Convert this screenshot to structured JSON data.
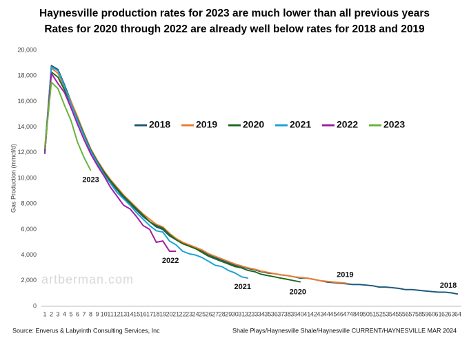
{
  "chart_data": {
    "type": "line",
    "title": "Haynesville production rates for 2023 are much lower than all previous years",
    "subtitle": "Rates for 2020 through 2022 are already well below rates for 2018 and 2019",
    "y_label": "Gas Production (mmcf/d)",
    "watermark": "artberman.com",
    "source": "Source:  Enverus & Labyrinth Consulting Services, Inc",
    "footer_right": "Shale Plays/Haynesville Shale/Haynesville  CURRENT/HAYNESVILLE MAR 2024",
    "legend": "center",
    "grid": false,
    "x": [
      1,
      2,
      3,
      4,
      5,
      6,
      7,
      8,
      9,
      10,
      11,
      12,
      13,
      14,
      15,
      16,
      17,
      18,
      19,
      20,
      21,
      22,
      23,
      24,
      25,
      26,
      27,
      28,
      29,
      30,
      31,
      32,
      33,
      34,
      35,
      36,
      37,
      38,
      39,
      40,
      41,
      42,
      43,
      44,
      45,
      46,
      47,
      48,
      49,
      50,
      51,
      52,
      53,
      54,
      55,
      56,
      57,
      58,
      59,
      60,
      61,
      62,
      63,
      64
    ],
    "xlim": [
      1,
      64
    ],
    "ylim": [
      0,
      20000
    ],
    "yticks": [
      0,
      {
        "value": 2000,
        "label": "2,000"
      },
      {
        "value": 4000,
        "label": "4,000"
      },
      {
        "value": 6000,
        "label": "6,000"
      },
      {
        "value": 8000,
        "label": "8,000"
      },
      {
        "value": 10000,
        "label": "10,000"
      },
      {
        "value": 12000,
        "label": "12,000"
      },
      {
        "value": 14000,
        "label": "14,000"
      },
      {
        "value": 16000,
        "label": "16,000"
      },
      {
        "value": 18000,
        "label": "18,000"
      },
      {
        "value": 20000,
        "label": "20,000"
      }
    ],
    "series": [
      {
        "name": "2018",
        "color": "#1f5a7a",
        "end_label": "2018",
        "values": [
          11900,
          18800,
          18500,
          17300,
          16000,
          14700,
          13400,
          12200,
          11200,
          10400,
          9700,
          9100,
          8500,
          8000,
          7500,
          7000,
          6600,
          6200,
          6000,
          5500,
          5200,
          4900,
          4700,
          4500,
          4300,
          4000,
          3800,
          3600,
          3400,
          3200,
          3100,
          2950,
          2850,
          2700,
          2600,
          2550,
          2450,
          2400,
          2300,
          2200,
          2200,
          2100,
          2000,
          1900,
          1850,
          1800,
          1750,
          1700,
          1700,
          1650,
          1600,
          1500,
          1500,
          1450,
          1400,
          1300,
          1300,
          1250,
          1200,
          1150,
          1100,
          1100,
          1050,
          950
        ]
      },
      {
        "name": "2019",
        "color": "#ed7d31",
        "end_label": "2019",
        "values": [
          12400,
          18600,
          18200,
          17100,
          16000,
          14800,
          13500,
          12300,
          11400,
          10600,
          9900,
          9300,
          8700,
          8200,
          7700,
          7200,
          6800,
          6400,
          6200,
          5700,
          5300,
          5000,
          4800,
          4600,
          4400,
          4100,
          3900,
          3700,
          3500,
          3300,
          3150,
          3000,
          2900,
          2750,
          2650,
          2550,
          2450,
          2400,
          2300,
          2250,
          2200,
          2100,
          2000,
          1950,
          1900,
          1850,
          1800,
          null,
          null,
          null,
          null,
          null,
          null,
          null,
          null,
          null,
          null,
          null,
          null,
          null,
          null,
          null,
          null,
          null
        ]
      },
      {
        "name": "2020",
        "color": "#1e6b1e",
        "end_label": "2020",
        "values": [
          12200,
          18300,
          17900,
          16900,
          15800,
          14600,
          13400,
          12200,
          11300,
          10500,
          9800,
          9200,
          8600,
          8100,
          7600,
          7100,
          6600,
          6300,
          6100,
          5600,
          5200,
          4900,
          4700,
          4500,
          4200,
          3900,
          3700,
          3500,
          3300,
          3100,
          3000,
          2800,
          2700,
          2500,
          2400,
          2300,
          2200,
          2100,
          2000,
          1900,
          null,
          null,
          null,
          null,
          null,
          null,
          null,
          null,
          null,
          null,
          null,
          null,
          null,
          null,
          null,
          null,
          null,
          null,
          null,
          null,
          null,
          null,
          null,
          null
        ]
      },
      {
        "name": "2021",
        "color": "#1fa2d6",
        "end_label": "2021",
        "values": [
          12100,
          18700,
          18400,
          17200,
          15800,
          14500,
          13300,
          12100,
          11200,
          10300,
          9600,
          8900,
          8400,
          7900,
          7300,
          6800,
          6300,
          5900,
          5800,
          5100,
          4800,
          4300,
          4100,
          4000,
          3800,
          3500,
          3200,
          3100,
          2800,
          2600,
          2300,
          2200,
          null,
          null,
          null,
          null,
          null,
          null,
          null,
          null,
          null,
          null,
          null,
          null,
          null,
          null,
          null,
          null,
          null,
          null,
          null,
          null,
          null,
          null,
          null,
          null,
          null,
          null,
          null,
          null,
          null,
          null,
          null,
          null
        ]
      },
      {
        "name": "2022",
        "color": "#a0209f",
        "end_label": "2022",
        "values": [
          12000,
          18200,
          17400,
          16700,
          15500,
          14200,
          13000,
          11900,
          11000,
          10200,
          9300,
          8600,
          7900,
          7600,
          7000,
          6300,
          6000,
          5000,
          5100,
          4300,
          4300,
          null,
          null,
          null,
          null,
          null,
          null,
          null,
          null,
          null,
          null,
          null,
          null,
          null,
          null,
          null,
          null,
          null,
          null,
          null,
          null,
          null,
          null,
          null,
          null,
          null,
          null,
          null,
          null,
          null,
          null,
          null,
          null,
          null,
          null,
          null,
          null,
          null,
          null,
          null,
          null,
          null,
          null,
          null
        ]
      },
      {
        "name": "2023",
        "color": "#6ab43b",
        "end_label": "2023",
        "values": [
          12300,
          17500,
          17000,
          15700,
          14500,
          12800,
          11600,
          10600,
          null,
          null,
          null,
          null,
          null,
          null,
          null,
          null,
          null,
          null,
          null,
          null,
          null,
          null,
          null,
          null,
          null,
          null,
          null,
          null,
          null,
          null,
          null,
          null,
          null,
          null,
          null,
          null,
          null,
          null,
          null,
          null,
          null,
          null,
          null,
          null,
          null,
          null,
          null,
          null,
          null,
          null,
          null,
          null,
          null,
          null,
          null,
          null,
          null,
          null,
          null,
          null,
          null,
          null,
          null,
          null
        ]
      }
    ]
  }
}
